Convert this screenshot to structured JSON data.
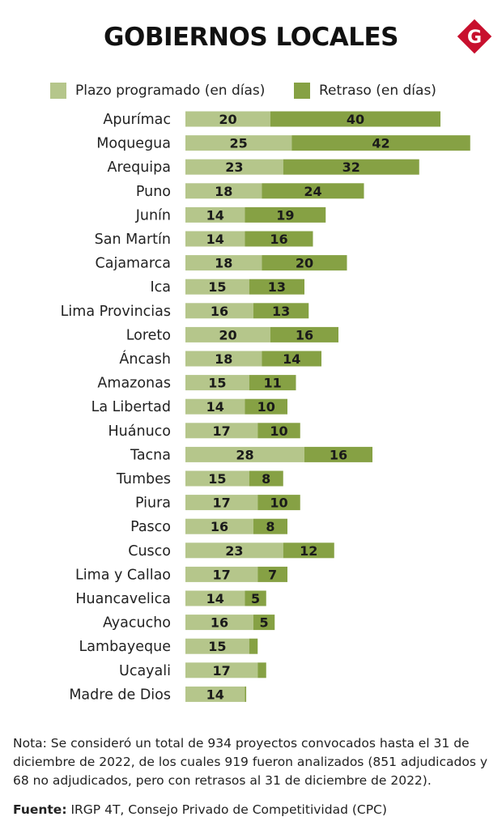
{
  "header": {
    "title": "GOBIERNOS LOCALES",
    "logo_letter": "G"
  },
  "chart_data": {
    "type": "bar",
    "orientation": "horizontal",
    "stacked": true,
    "categories": [
      "Apurímac",
      "Moquegua",
      "Arequipa",
      "Puno",
      "Junín",
      "San Martín",
      "Cajamarca",
      "Ica",
      "Lima Provincias",
      "Loreto",
      "Áncash",
      "Amazonas",
      "La Libertad",
      "Huánuco",
      "Tacna",
      "Tumbes",
      "Piura",
      "Pasco",
      "Cusco",
      "Lima y Callao",
      "Huancavelica",
      "Ayacucho",
      "Lambayeque",
      "Ucayali",
      "Madre de Dios"
    ],
    "series": [
      {
        "name": "Plazo programado (en días)",
        "color": "#b5c68b",
        "values": [
          20,
          25,
          23,
          18,
          14,
          14,
          18,
          15,
          16,
          20,
          18,
          15,
          14,
          17,
          28,
          15,
          17,
          16,
          23,
          17,
          14,
          16,
          15,
          17,
          14
        ],
        "labels": [
          "20",
          "25",
          "23",
          "18",
          "14",
          "14",
          "18",
          "15",
          "16",
          "20",
          "18",
          "15",
          "14",
          "17",
          "28",
          "15",
          "17",
          "16",
          "23",
          "17",
          "14",
          "16",
          "15",
          "17",
          "14"
        ]
      },
      {
        "name": "Retraso (en días)",
        "color": "#86a144",
        "values": [
          40,
          42,
          32,
          24,
          19,
          16,
          20,
          13,
          13,
          16,
          14,
          11,
          10,
          10,
          16,
          8,
          10,
          8,
          12,
          7,
          5,
          5,
          2,
          2,
          0.3
        ],
        "labels": [
          "40",
          "42",
          "32",
          "24",
          "19",
          "16",
          "20",
          "13",
          "13",
          "16",
          "14",
          "11",
          "10",
          "10",
          "16",
          "8",
          "10",
          "8",
          "12",
          "7",
          "5",
          "5",
          "",
          "",
          ""
        ]
      }
    ],
    "legend_position": "top",
    "grid": false
  },
  "footer": {
    "note": "Nota: Se consideró un total de 934 proyectos convocados hasta el 31 de diciembre de 2022, de los cuales 919 fueron analizados (851 adjudicados y 68 no adjudicados, pero con retrasos al 31 de diciembre de 2022).",
    "source_label": "Fuente:",
    "source_text": " IRGP 4T, Consejo Privado de Competitividad (CPC)"
  },
  "colors": {
    "plazo": "#b5c68b",
    "retraso": "#86a144",
    "logo": "#c8102e"
  }
}
